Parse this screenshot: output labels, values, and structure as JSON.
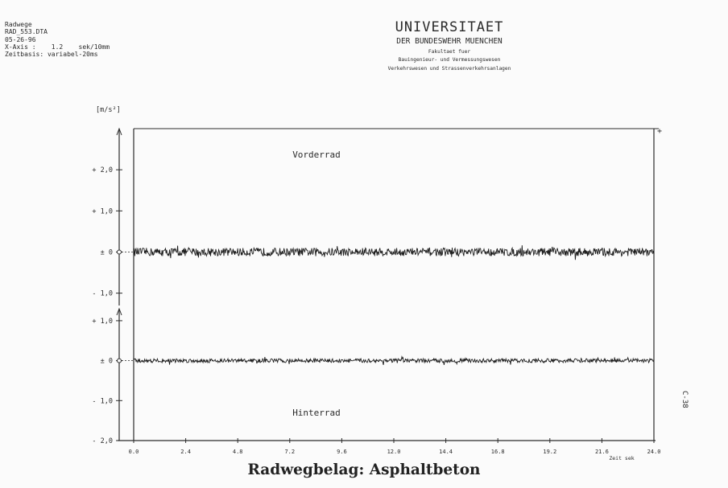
{
  "header": {
    "left_lines": [
      "Radwege",
      "RAD_553.DTA",
      "05-26-96",
      "X-Axis :    1.2    sek/10mm",
      "Zeitbasis: variabel-20ms"
    ],
    "institution": {
      "title": "UNIVERSITAET",
      "subtitle": "DER BUNDESWEHR MUENCHEN",
      "faculty_lines": [
        "Fakultaet fuer",
        "Bauingenieur- und Vermessungswesen",
        "Verkehrswesen und Strassenverkehrsanlagen"
      ]
    }
  },
  "side_id": "C-38",
  "caption": "Radwegbelag: Asphaltbeton",
  "chart_data": {
    "type": "line",
    "ylabel": "[m/s²]",
    "xlabel": "Zeit    sek",
    "x_ticks": [
      "0.0",
      "2.4",
      "4.8",
      "7.2",
      "9.6",
      "12.0",
      "14.4",
      "16.8",
      "19.2",
      "21.6",
      "24.0"
    ],
    "xlim": [
      0,
      24
    ],
    "grid": false,
    "series": [
      {
        "name": "Vorderrad",
        "baseline": 0,
        "y_ticks": [
          "+ 2,0",
          "+ 1,0",
          "± 0",
          "- 1,0"
        ],
        "y_tick_values": [
          2,
          1,
          0,
          -1
        ],
        "ylim": [
          -1.3,
          3
        ],
        "noise_amplitude": 0.1
      },
      {
        "name": "Hinterrad",
        "baseline": 0,
        "y_ticks": [
          "+ 1,0",
          "± 0",
          "- 1,0",
          "- 2,0"
        ],
        "y_tick_values": [
          1,
          0,
          -1,
          -2
        ],
        "ylim": [
          -2,
          1.3
        ],
        "noise_amplitude": 0.05
      }
    ]
  }
}
